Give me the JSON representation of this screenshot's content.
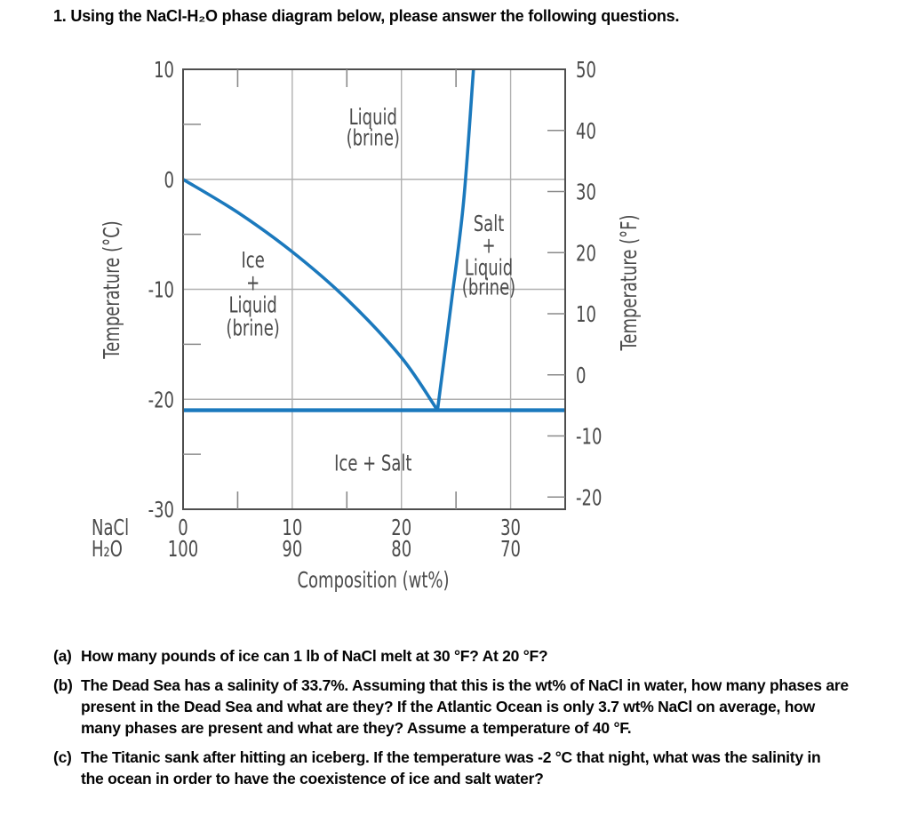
{
  "title": "1. Using the NaCl-H₂O phase diagram below, please answer the following questions.",
  "questions": [
    {
      "label": "(a)",
      "lines": [
        "How many pounds of ice can 1 lb of NaCl melt at 30 °F? At 20 °F?"
      ]
    },
    {
      "label": "(b)",
      "lines": [
        "The Dead Sea has a salinity of 33.7%. Assuming that this is the wt% of NaCl in water, how many phases are",
        "present in the Dead Sea and what are they? If the Atlantic Ocean is only 3.7 wt% NaCl on average, how",
        "many phases are present and what are they? Assume a temperature of 40 °F."
      ]
    },
    {
      "label": "(c)",
      "lines": [
        "The Titanic sank after hitting an iceberg. If the temperature was -2 °C that night, what was the salinity in",
        "the ocean in order to have the coexistence of ice and salt water?"
      ]
    }
  ],
  "chart_data": {
    "type": "line",
    "title": "",
    "xlabel": "Composition (wt%)",
    "grid": true,
    "line_color": "#1b79bd",
    "x_axis": {
      "range": [
        0,
        35
      ],
      "major_ticks": [
        0,
        10,
        20,
        30
      ],
      "minor_ticks": [
        5,
        15,
        25
      ],
      "gridlines": [
        10,
        20,
        30
      ],
      "row1_header": "NaCl",
      "row1_values": [
        "0",
        "10",
        "20",
        "30"
      ],
      "row2_header": "H₂O",
      "row2_values": [
        "100",
        "90",
        "80",
        "70"
      ]
    },
    "y_axis_left": {
      "label": "Temperature (°C)",
      "range": [
        -30,
        10
      ],
      "major_ticks": [
        10,
        0,
        -10,
        -20,
        -30
      ],
      "minor_ticks": [
        5,
        -5,
        -15,
        -25
      ],
      "gridlines": [
        0,
        -10,
        -20
      ]
    },
    "y_axis_right": {
      "label": "Temperature (°F)",
      "unit": "F",
      "ticks": [
        50,
        40,
        30,
        20,
        10,
        0,
        -10,
        -20
      ]
    },
    "series": [
      {
        "name": "ice-liquidus",
        "color": "#1b79bd",
        "points": [
          [
            0,
            0
          ],
          [
            5,
            -3
          ],
          [
            10,
            -6.6
          ],
          [
            15,
            -10.9
          ],
          [
            20,
            -16.2
          ],
          [
            23.3,
            -21
          ]
        ]
      },
      {
        "name": "salt-solubility-line",
        "color": "#1b79bd",
        "points": [
          [
            23.3,
            -21
          ],
          [
            24.6,
            -11
          ],
          [
            25.7,
            -2
          ],
          [
            26.6,
            10
          ]
        ]
      },
      {
        "name": "eutectic-isotherm",
        "color": "#1b79bd",
        "points": [
          [
            0,
            -21
          ],
          [
            35,
            -21
          ]
        ]
      }
    ],
    "eutectic_point": {
      "composition_wt_pct": 23.3,
      "temperature_c": -21
    },
    "region_labels": [
      {
        "id": "liquid-brine",
        "lines": [
          "Liquid",
          "(brine)"
        ],
        "x": 17.4,
        "y_lines": [
          5.0,
          3.1
        ]
      },
      {
        "id": "ice-liquid-brine",
        "lines": [
          "Ice",
          "+",
          "Liquid",
          "(brine)"
        ],
        "x": 6.4,
        "y_lines": [
          -8.0,
          -10.1,
          -12.1,
          -14.2
        ]
      },
      {
        "id": "salt-liquid-brine",
        "lines": [
          "Salt",
          "+",
          "Liquid",
          "(brine)"
        ],
        "x": 28.0,
        "y_lines": [
          -4.7,
          -6.7,
          -8.7,
          -10.5
        ]
      },
      {
        "id": "ice-salt",
        "lines": [
          "Ice + Salt"
        ],
        "x": 17.4,
        "y_lines": [
          -26.5
        ]
      }
    ]
  }
}
